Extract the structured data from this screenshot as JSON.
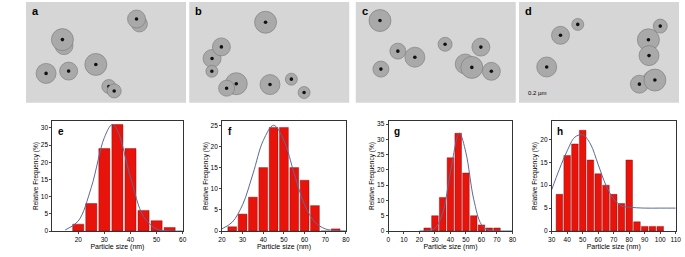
{
  "images": [
    {
      "label": "a"
    },
    {
      "label": "b"
    },
    {
      "label": "c"
    },
    {
      "label": "d",
      "scale_bar": "0.2 µm"
    }
  ],
  "chart_data": [
    {
      "type": "bar",
      "title": "e",
      "x_label": "Particle size (nm)",
      "y_label": "Relative Frequency (%)",
      "bins": [
        17.5,
        22.5,
        27.5,
        32.5,
        37.5,
        42.5,
        47.5,
        52.5,
        57.5
      ],
      "xlim": [
        10,
        60
      ],
      "xticks": [
        20,
        30,
        40,
        50,
        60
      ],
      "ylim": [
        0,
        32
      ],
      "yticks": [
        0,
        5,
        10,
        15,
        20,
        25,
        30
      ],
      "series": [
        {
          "type": "bar",
          "color": "#e8140c",
          "values": [
            2,
            8,
            24,
            31,
            24,
            6,
            3,
            1
          ]
        },
        {
          "type": "line",
          "color": "#5a6a9a",
          "x": [
            15,
            20,
            25,
            30,
            33,
            35,
            40,
            45,
            50,
            55,
            60
          ],
          "values": [
            0.3,
            2.9,
            12.7,
            27.2,
            31,
            29.3,
            15.7,
            4.2,
            0.6,
            0,
            0
          ]
        }
      ]
    },
    {
      "type": "bar",
      "title": "f",
      "x_label": "Particle size (nm)",
      "y_label": "Relative Frequency (%)",
      "bins": [
        22.5,
        27.5,
        32.5,
        37.5,
        42.5,
        47.5,
        52.5,
        57.5,
        62.5,
        67.5,
        72.5,
        77.5
      ],
      "xlim": [
        20,
        80
      ],
      "xticks": [
        20,
        30,
        40,
        50,
        60,
        70,
        80
      ],
      "ylim": [
        0,
        26
      ],
      "yticks": [
        0,
        5,
        10,
        15,
        20,
        25
      ],
      "series": [
        {
          "type": "bar",
          "color": "#e8140c",
          "values": [
            1,
            4,
            8,
            15,
            24.5,
            24.5,
            15,
            12,
            6,
            0,
            0.5
          ]
        },
        {
          "type": "line",
          "color": "#5a6a9a",
          "x": [
            20,
            25,
            30,
            35,
            40,
            45,
            50,
            55,
            60,
            65,
            70,
            75,
            80
          ],
          "values": [
            0.5,
            2.1,
            6.2,
            13.5,
            21.4,
            25,
            21.4,
            13.5,
            6.2,
            2.1,
            0.5,
            0.1,
            0
          ]
        }
      ]
    },
    {
      "type": "bar",
      "title": "g",
      "x_label": "Particle size (nm)",
      "y_label": "Relative Frequency (%)",
      "bins": [
        22.5,
        27.5,
        32.5,
        37.5,
        42.5,
        47.5,
        52.5,
        57.5,
        62.5,
        67.5,
        72.5
      ],
      "xlim": [
        0,
        80
      ],
      "xticks": [
        0,
        10,
        20,
        30,
        40,
        50,
        60,
        70,
        80
      ],
      "ylim": [
        0,
        36
      ],
      "yticks": [
        0,
        5,
        10,
        15,
        20,
        25,
        30,
        35
      ],
      "series": [
        {
          "type": "bar",
          "color": "#e8140c",
          "values": [
            1,
            5,
            11,
            24,
            32,
            19,
            5,
            2,
            1,
            1
          ]
        },
        {
          "type": "line",
          "color": "#5a6a9a",
          "x": [
            20,
            25,
            30,
            35,
            40,
            45,
            46,
            50,
            55,
            60,
            65,
            70,
            75,
            80
          ],
          "values": [
            0,
            0.1,
            0.9,
            6,
            19.4,
            31.6,
            32,
            25.6,
            10.4,
            2.1,
            0.2,
            0,
            0,
            0
          ]
        }
      ]
    },
    {
      "type": "bar",
      "title": "h",
      "x_label": "Particle size (nm)",
      "y_label": "Relative Frequency (%)",
      "bins": [
        32.5,
        37.5,
        42.5,
        47.5,
        52.5,
        57.5,
        62.5,
        67.5,
        72.5,
        77.5,
        82.5,
        87.5,
        92.5,
        97.5,
        102.5
      ],
      "xlim": [
        30,
        110
      ],
      "xticks": [
        30,
        40,
        50,
        60,
        70,
        80,
        90,
        100,
        110
      ],
      "ylim": [
        0,
        24
      ],
      "yticks": [
        0,
        5,
        10,
        15,
        20
      ],
      "series": [
        {
          "type": "bar",
          "color": "#e8140c",
          "values": [
            8,
            16.5,
            19,
            22,
            15.5,
            12.5,
            10,
            8,
            6,
            15.5,
            2,
            1,
            1,
            1
          ]
        },
        {
          "type": "line",
          "color": "#5a6a9a",
          "x": [
            30,
            35,
            40,
            45,
            50,
            55,
            60,
            65,
            70,
            75,
            80,
            90,
            100,
            110
          ],
          "values": [
            9,
            13.5,
            17.5,
            20.5,
            21,
            19,
            14.5,
            10,
            7,
            5.5,
            5.2,
            5,
            5,
            5
          ]
        }
      ]
    }
  ]
}
